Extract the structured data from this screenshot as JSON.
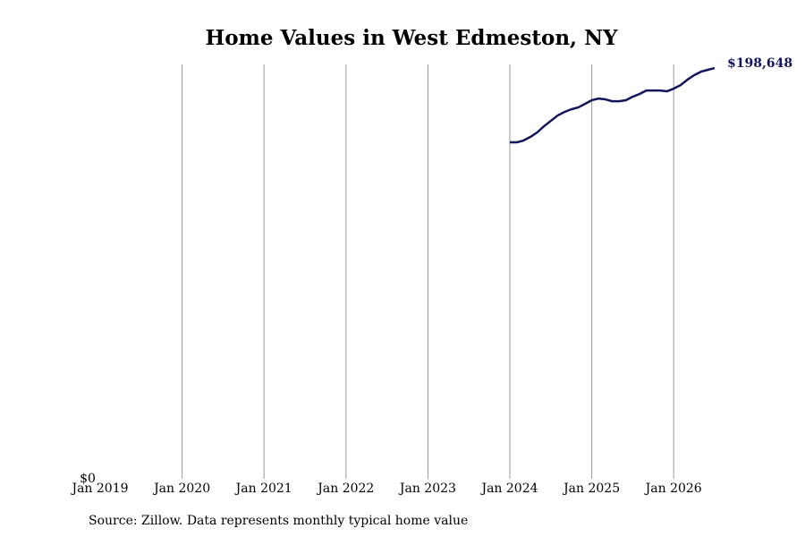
{
  "chart_data": {
    "type": "line",
    "title": "Home Values in West Edmeston, NY",
    "source": "Source: Zillow. Data represents monthly typical home value",
    "x": [
      "2024-01",
      "2024-02",
      "2024-03",
      "2024-04",
      "2024-05",
      "2024-06",
      "2024-07",
      "2024-08",
      "2024-09",
      "2024-10",
      "2024-11",
      "2024-12",
      "2025-01",
      "2025-02",
      "2025-03",
      "2025-04",
      "2025-05",
      "2025-06",
      "2025-07",
      "2025-08",
      "2025-09",
      "2025-10",
      "2025-11",
      "2025-12",
      "2026-01",
      "2026-02",
      "2026-03",
      "2026-04",
      "2026-05",
      "2026-06",
      "2026-07"
    ],
    "series": [
      {
        "color": "#14145a",
        "values": [
          162730,
          162730,
          163600,
          165330,
          167500,
          170500,
          173100,
          175700,
          177400,
          178700,
          179600,
          181300,
          183100,
          183900,
          183500,
          182600,
          182600,
          183100,
          184800,
          186100,
          187800,
          187800,
          187800,
          187400,
          188700,
          190400,
          193000,
          195200,
          196900,
          197800,
          198648
        ],
        "value_labels": [
          null,
          null,
          null,
          null,
          null,
          null,
          null,
          null,
          null,
          null,
          null,
          null,
          null,
          null,
          null,
          null,
          null,
          null,
          null,
          null,
          null,
          null,
          null,
          null,
          null,
          null,
          null,
          null,
          null,
          null,
          "$198,648"
        ]
      }
    ],
    "xlim": [
      "2019-01",
      "2026-07"
    ],
    "xticks": [
      {
        "value": "2019-01",
        "label": "Jan 2019"
      },
      {
        "value": "2020-01",
        "label": "Jan 2020"
      },
      {
        "value": "2021-01",
        "label": "Jan 2021"
      },
      {
        "value": "2022-01",
        "label": "Jan 2022"
      },
      {
        "value": "2023-01",
        "label": "Jan 2023"
      },
      {
        "value": "2024-01",
        "label": "Jan 2024"
      },
      {
        "value": "2025-01",
        "label": "Jan 2025"
      },
      {
        "value": "2026-01",
        "label": "Jan 2026"
      }
    ],
    "ylim": [
      0,
      200400
    ],
    "yticks": [
      {
        "value": 0,
        "label": "$0"
      }
    ],
    "grid": true
  }
}
